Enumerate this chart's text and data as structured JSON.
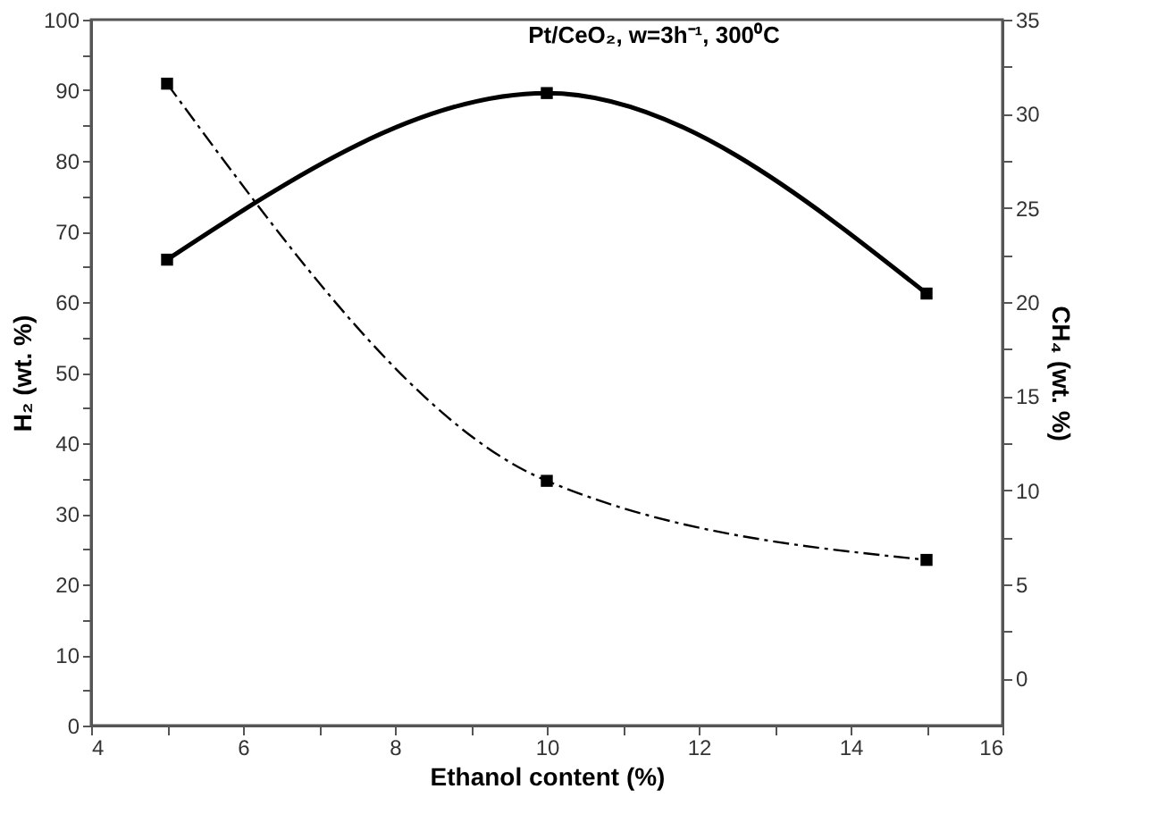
{
  "chart_data": {
    "type": "line",
    "title": "Pt/CeO₂, w=3h⁻¹, 300⁰C",
    "xlabel": "Ethanol content (%)",
    "ylabel": "H₂ (wt. %)",
    "y2label": "CH₄ (wt. %)",
    "x": [
      5,
      10,
      15
    ],
    "series": [
      {
        "color": "#000000",
        "values": [
          66,
          89.6,
          61.2
        ],
        "line_style": "solid"
      },
      {
        "color": "#000000",
        "values": [
          31.6,
          10.5,
          6.3
        ],
        "axis": "y2",
        "line_style": "dashdot"
      }
    ],
    "xlim": [
      4,
      16
    ],
    "xticks": [
      4,
      {
        "value": 5,
        "label": null
      },
      6,
      {
        "value": 7,
        "label": null
      },
      8,
      {
        "value": 9,
        "label": null
      },
      10,
      {
        "value": 11,
        "label": null
      },
      12,
      {
        "value": 13,
        "label": null
      },
      14,
      {
        "value": 15,
        "label": null
      },
      16
    ],
    "ylim": [
      0,
      100
    ],
    "yticks": [
      0,
      {
        "value": 5,
        "label": null
      },
      10,
      {
        "value": 15,
        "label": null
      },
      20,
      {
        "value": 25,
        "label": null
      },
      30,
      {
        "value": 35,
        "label": null
      },
      40,
      {
        "value": 45,
        "label": null
      },
      50,
      {
        "value": 55,
        "label": null
      },
      60,
      {
        "value": 65,
        "label": null
      },
      70,
      {
        "value": 75,
        "label": null
      },
      80,
      {
        "value": 85,
        "label": null
      },
      90,
      {
        "value": 95,
        "label": null
      },
      100
    ],
    "y2lim": [
      -2.5,
      35
    ],
    "y2ticks": [
      0,
      {
        "value": 2.5,
        "label": null
      },
      5,
      {
        "value": 7.5,
        "label": null
      },
      10,
      {
        "value": 12.5,
        "label": null
      },
      15,
      {
        "value": 17.5,
        "label": null
      },
      20,
      {
        "value": 22.5,
        "label": null
      },
      25,
      {
        "value": 27.5,
        "label": null
      },
      30,
      {
        "value": 32.5,
        "label": null
      },
      35
    ],
    "grid": false,
    "marker": "square"
  }
}
